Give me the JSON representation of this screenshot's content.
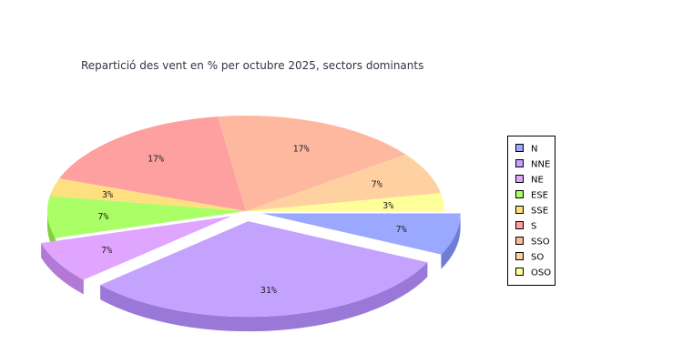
{
  "chart_data": {
    "type": "pie",
    "title": "Repartició des vent en % per octubre 2025, sectors dominants",
    "slices": [
      {
        "name": "N",
        "value": 7,
        "label": "7%",
        "color": "#9aa8ff",
        "side": "#6f7dd6"
      },
      {
        "name": "NNE",
        "value": 31,
        "label": "31%",
        "color": "#c4a3ff",
        "side": "#9a78d8"
      },
      {
        "name": "NE",
        "value": 7,
        "label": "7%",
        "color": "#e0a6ff",
        "side": "#b27ad6"
      },
      {
        "name": "ESE",
        "value": 7,
        "label": "7%",
        "color": "#aaff66",
        "side": "#80d040"
      },
      {
        "name": "SSE",
        "value": 3,
        "label": "3%",
        "color": "#ffe080",
        "side": "#d6b860"
      },
      {
        "name": "S",
        "value": 17,
        "label": "17%",
        "color": "#ffa0a0",
        "side": "#d67878"
      },
      {
        "name": "SSO",
        "value": 17,
        "label": "17%",
        "color": "#ffb8a0",
        "side": "#d69078"
      },
      {
        "name": "SO",
        "value": 7,
        "label": "7%",
        "color": "#ffd0a0",
        "side": "#d6a878"
      },
      {
        "name": "OSO",
        "value": 3,
        "label": "3%",
        "color": "#ffff99",
        "side": "#d6d670"
      }
    ],
    "exploded": [
      "N",
      "NNE",
      "NE"
    ],
    "legend_position": "right",
    "legend": [
      "N",
      "NNE",
      "NE",
      "ESE",
      "SSE",
      "S",
      "SSO",
      "SO",
      "OSO"
    ]
  }
}
